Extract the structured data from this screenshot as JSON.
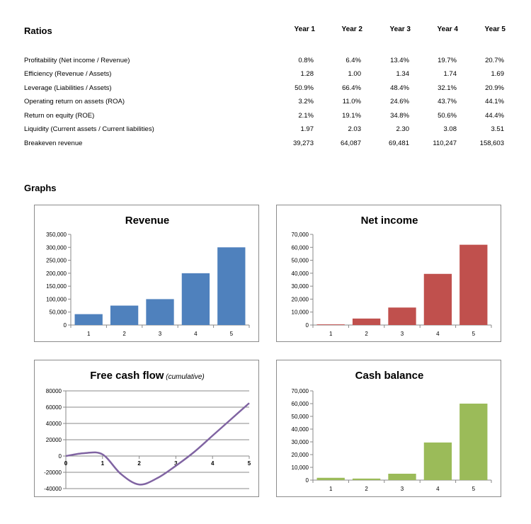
{
  "ratios": {
    "title": "Ratios",
    "years": [
      "Year 1",
      "Year 2",
      "Year 3",
      "Year 4",
      "Year 5"
    ],
    "rows": [
      {
        "label": "Profitability (Net income / Revenue)",
        "values": [
          "0.8%",
          "6.4%",
          "13.4%",
          "19.7%",
          "20.7%"
        ]
      },
      {
        "label": "Efficiency (Revenue  / Assets)",
        "values": [
          "1.28",
          "1.00",
          "1.34",
          "1.74",
          "1.69"
        ]
      },
      {
        "label": "Leverage (Liabilities / Assets)",
        "values": [
          "50.9%",
          "66.4%",
          "48.4%",
          "32.1%",
          "20.9%"
        ]
      },
      {
        "label": "Operating return on assets (ROA)",
        "values": [
          "3.2%",
          "11.0%",
          "24.6%",
          "43.7%",
          "44.1%"
        ]
      },
      {
        "label": "Return on equity (ROE)",
        "values": [
          "2.1%",
          "19.1%",
          "34.8%",
          "50.6%",
          "44.4%"
        ]
      },
      {
        "label": "Liquidity (Current assets / Current liabilities)",
        "values": [
          "1.97",
          "2.03",
          "2.30",
          "3.08",
          "3.51"
        ]
      },
      {
        "label": "Breakeven revenue",
        "values": [
          "39,273",
          "64,087",
          "69,481",
          "110,247",
          "158,603"
        ]
      }
    ]
  },
  "graphs": {
    "title": "Graphs"
  },
  "chart_data": [
    {
      "id": "revenue",
      "type": "bar",
      "title": "Revenue",
      "title_suffix": "",
      "color": "#4f81bd",
      "categories": [
        "1",
        "2",
        "3",
        "4",
        "5"
      ],
      "values": [
        42000,
        75000,
        100000,
        200000,
        300000
      ],
      "ylim": [
        0,
        350000
      ],
      "yticks": [
        0,
        50000,
        100000,
        150000,
        200000,
        250000,
        300000,
        350000
      ],
      "ytick_labels": [
        "0",
        "50,000",
        "100,000",
        "150,000",
        "200,000",
        "250,000",
        "300,000",
        "350,000"
      ],
      "grid": false
    },
    {
      "id": "net-income",
      "type": "bar",
      "title": "Net income",
      "title_suffix": "",
      "color": "#c0504d",
      "categories": [
        "1",
        "2",
        "3",
        "4",
        "5"
      ],
      "values": [
        500,
        5000,
        13500,
        39500,
        62000
      ],
      "ylim": [
        0,
        70000
      ],
      "yticks": [
        0,
        10000,
        20000,
        30000,
        40000,
        50000,
        60000,
        70000
      ],
      "ytick_labels": [
        "0",
        "10,000",
        "20,000",
        "30,000",
        "40,000",
        "50,000",
        "60,000",
        "70,000"
      ],
      "grid": false
    },
    {
      "id": "free-cash-flow",
      "type": "line",
      "title": "Free cash flow",
      "title_suffix": "(cumulative)",
      "color": "#8064a2",
      "x": [
        0,
        0.5,
        1,
        1.5,
        2,
        2.5,
        3,
        3.5,
        4,
        4.5,
        5
      ],
      "values": [
        0,
        3500,
        2000,
        -22000,
        -35000,
        -27000,
        -12000,
        5000,
        25000,
        45000,
        65000
      ],
      "xlim": [
        0,
        5
      ],
      "xticks": [
        0,
        1,
        2,
        3,
        4,
        5
      ],
      "xtick_labels": [
        "0",
        "1",
        "2",
        "3",
        "4",
        "5"
      ],
      "ylim": [
        -40000,
        80000
      ],
      "yticks": [
        -40000,
        -20000,
        0,
        20000,
        40000,
        60000,
        80000
      ],
      "ytick_labels": [
        "-40000",
        "-20000",
        "0",
        "20000",
        "40000",
        "60000",
        "80000"
      ],
      "grid": true
    },
    {
      "id": "cash-balance",
      "type": "bar",
      "title": "Cash balance",
      "title_suffix": "",
      "color": "#9bbb59",
      "categories": [
        "1",
        "2",
        "3",
        "4",
        "5"
      ],
      "values": [
        1800,
        1200,
        5000,
        29500,
        60000
      ],
      "ylim": [
        0,
        70000
      ],
      "yticks": [
        0,
        10000,
        20000,
        30000,
        40000,
        50000,
        60000,
        70000
      ],
      "ytick_labels": [
        "0",
        "10,000",
        "20,000",
        "30,000",
        "40,000",
        "50,000",
        "60,000",
        "70,000"
      ],
      "grid": false
    }
  ]
}
